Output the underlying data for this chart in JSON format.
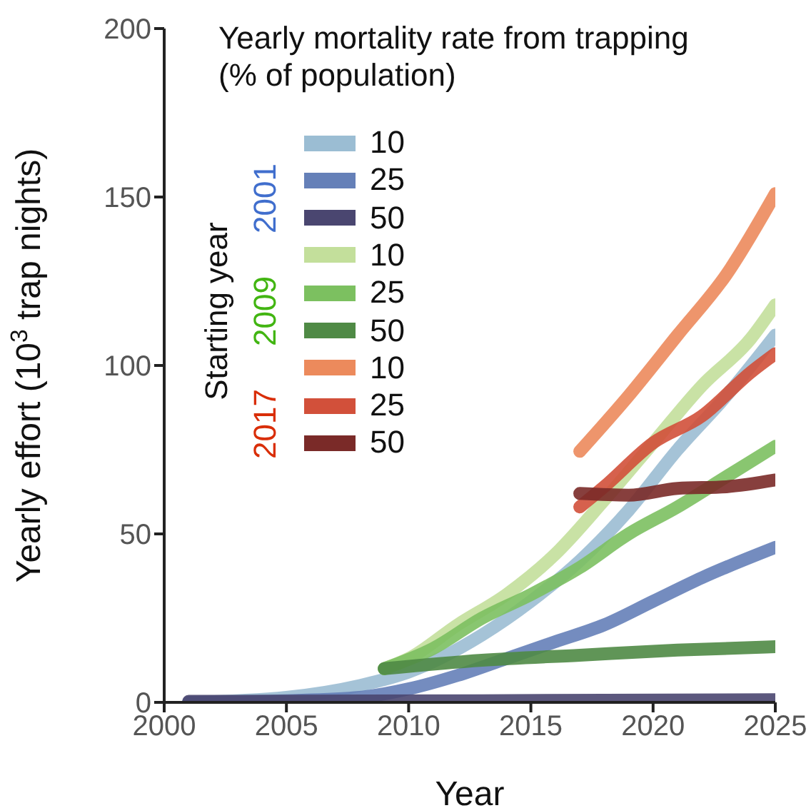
{
  "chart_data": {
    "type": "line",
    "xlabel": "Year",
    "ylabel": "Yearly effort (10$^{3}$ trap nights)",
    "legend_title": "Yearly mortality rate from trapping (% of population)",
    "annotations": [
      "Starting year",
      "2001",
      "2009",
      "2017"
    ],
    "xlim": [
      2000,
      2025
    ],
    "xticks": [
      2000,
      2005,
      2010,
      2015,
      2020,
      2025
    ],
    "ylim": [
      0,
      200
    ],
    "yticks": [
      0,
      50,
      100,
      150,
      200
    ],
    "grid": false,
    "legend": "top left",
    "marker": "none",
    "line_style": "solid",
    "series": [
      {
        "name": "10",
        "color": "#9bbdd3",
        "x": [
          2001,
          2005,
          2008,
          2010,
          2013,
          2015,
          2017,
          2019,
          2021,
          2023,
          2025
        ],
        "values": [
          0,
          1.5,
          5,
          9,
          20,
          30,
          42,
          57,
          75,
          91,
          109
        ]
      },
      {
        "name": "25",
        "color": "#6580b8",
        "x": [
          2001,
          2005,
          2008,
          2010,
          2012,
          2014,
          2016,
          2018,
          2020,
          2022,
          2025
        ],
        "values": [
          0,
          0.5,
          1.5,
          4,
          8,
          13,
          18,
          23,
          30,
          37,
          46
        ]
      },
      {
        "name": "50",
        "color": "#4a4670",
        "x": [
          2001,
          2013,
          2025
        ],
        "values": [
          0.3,
          0.5,
          0.8
        ]
      },
      {
        "name": "10",
        "color": "#c3df9b",
        "x": [
          2009,
          2010,
          2012,
          2014,
          2016,
          2018,
          2020,
          2022,
          2024,
          2025
        ],
        "values": [
          10,
          13,
          23,
          32,
          44,
          60,
          77,
          94,
          108,
          118
        ]
      },
      {
        "name": "25",
        "color": "#7cc060",
        "x": [
          2009,
          2011,
          2013,
          2015,
          2017,
          2019,
          2021,
          2023,
          2025
        ],
        "values": [
          10,
          16,
          25,
          32,
          40,
          50,
          58,
          67,
          76
        ]
      },
      {
        "name": "50",
        "color": "#4f8a45",
        "x": [
          2009,
          2013,
          2017,
          2021,
          2025
        ],
        "values": [
          10,
          12.5,
          14,
          15.5,
          16.5
        ]
      },
      {
        "name": "10",
        "color": "#ec8a5c",
        "x": [
          2017,
          2019,
          2021,
          2023,
          2025
        ],
        "values": [
          74.5,
          91,
          109,
          127,
          151
        ]
      },
      {
        "name": "25",
        "color": "#d2503a",
        "x": [
          2017,
          2018,
          2020,
          2022,
          2024,
          2025
        ],
        "values": [
          58,
          64,
          77,
          85,
          98,
          103.5
        ]
      },
      {
        "name": "50",
        "color": "#7a2a28",
        "x": [
          2017,
          2019,
          2021,
          2023,
          2025
        ],
        "values": [
          62,
          61.5,
          63.5,
          64,
          66
        ]
      }
    ]
  }
}
